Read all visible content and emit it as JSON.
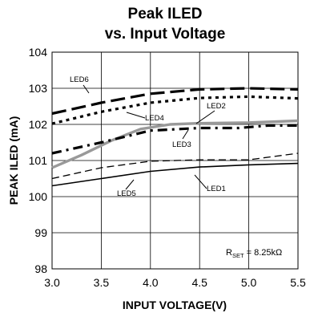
{
  "chart_data": {
    "type": "line",
    "title_line1": "Peak ILED",
    "title_line2": "vs. Input Voltage",
    "xlabel": "INPUT VOLTAGE(V)",
    "ylabel": "PEAK ILED (mA)",
    "xlim": [
      3.0,
      5.5
    ],
    "ylim": [
      98,
      104
    ],
    "xticks": [
      3.0,
      3.5,
      4.0,
      4.5,
      5.0,
      5.5
    ],
    "xtick_labels": [
      "3.0",
      "3.5",
      "4.0",
      "4.5",
      "5.0",
      "5.5"
    ],
    "yticks": [
      98,
      99,
      100,
      101,
      102,
      103,
      104
    ],
    "ytick_labels": [
      "98",
      "99",
      "100",
      "101",
      "102",
      "103",
      "104"
    ],
    "grid": true,
    "annotation_rset": {
      "main": "R",
      "sub": "SET",
      "rest": " = 8.25kΩ"
    },
    "series": [
      {
        "name": "LED6",
        "style": "longdash",
        "color": "#000000",
        "x": [
          3.0,
          3.5,
          4.0,
          4.5,
          5.0,
          5.5
        ],
        "y": [
          102.3,
          102.6,
          102.85,
          102.97,
          103.0,
          102.97
        ]
      },
      {
        "name": "LED4",
        "style": "dot",
        "color": "#000000",
        "x": [
          3.0,
          3.5,
          4.0,
          4.5,
          5.0,
          5.5
        ],
        "y": [
          102.02,
          102.35,
          102.6,
          102.73,
          102.77,
          102.72
        ]
      },
      {
        "name": "LED2",
        "style": "solid",
        "color": "#999999",
        "x": [
          3.0,
          3.3,
          3.6,
          3.9,
          4.2,
          4.5,
          5.0,
          5.5
        ],
        "y": [
          100.8,
          101.15,
          101.55,
          101.87,
          102.0,
          102.03,
          102.05,
          102.1
        ]
      },
      {
        "name": "LED3",
        "style": "dashdot",
        "color": "#000000",
        "x": [
          3.0,
          3.5,
          4.0,
          4.5,
          4.9,
          5.2,
          5.5
        ],
        "y": [
          101.2,
          101.5,
          101.83,
          101.9,
          101.9,
          101.97,
          101.97
        ]
      },
      {
        "name": "LED5",
        "style": "dash",
        "color": "#000000",
        "x": [
          3.0,
          3.5,
          4.0,
          4.5,
          5.0,
          5.5
        ],
        "y": [
          100.5,
          100.8,
          100.98,
          101.02,
          101.02,
          101.2
        ]
      },
      {
        "name": "LED1",
        "style": "solid",
        "color": "#000000",
        "x": [
          3.0,
          3.5,
          4.0,
          4.5,
          5.0,
          5.5
        ],
        "y": [
          100.3,
          100.5,
          100.7,
          100.82,
          100.88,
          100.92
        ]
      }
    ]
  }
}
